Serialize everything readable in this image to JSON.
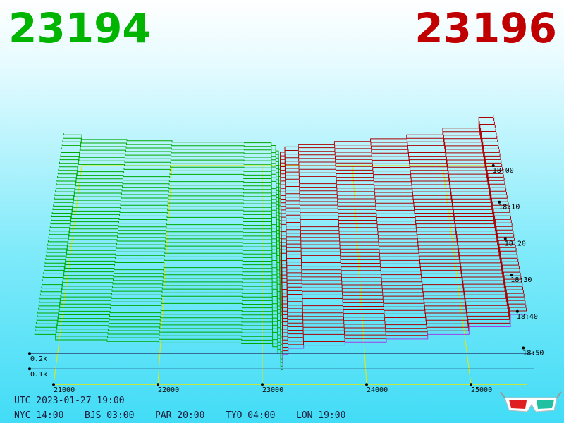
{
  "chart_data": {
    "type": "depth3d",
    "bid_price": "23194",
    "ask_price": "23196",
    "bid_color": "#00aa00",
    "ask_color": "#aa0000",
    "ask_latest_color": "#a040e0",
    "xticks": [
      21000,
      22000,
      23000,
      24000,
      25000
    ],
    "time_ticks": [
      {
        "value": 0,
        "label": "18:00"
      },
      {
        "value": 10,
        "label": "18:10"
      },
      {
        "value": 20,
        "label": "18:20"
      },
      {
        "value": 30,
        "label": "18:30"
      },
      {
        "value": 40,
        "label": "18:40"
      },
      {
        "value": 50,
        "label": "18:50"
      }
    ],
    "depth_ticks": [
      {
        "value": 200,
        "label": "0.2k"
      },
      {
        "value": 100,
        "label": "0.1k"
      }
    ],
    "slice_minutes": [
      0,
      1,
      2,
      3,
      4,
      5,
      6,
      7,
      8,
      9,
      10,
      11,
      12,
      13,
      14,
      15,
      16,
      17,
      18,
      19,
      20,
      21,
      22,
      23,
      24,
      25,
      26,
      27,
      28,
      29,
      30,
      31,
      32,
      33,
      34,
      35,
      36,
      37,
      38,
      39,
      40,
      41,
      42,
      43,
      44,
      45,
      46,
      47,
      48,
      49,
      50,
      51,
      52,
      53,
      54,
      55,
      56
    ],
    "bid_profile": {
      "prices": [
        23194,
        23180,
        23150,
        23100,
        22800,
        22000,
        21500,
        21000,
        20800
      ],
      "depths": [
        0,
        110,
        150,
        170,
        175,
        185,
        195,
        230,
        240
      ]
    },
    "ask_profile": {
      "prices": [
        23196,
        23200,
        23250,
        23400,
        23800,
        24200,
        24600,
        25000,
        25400,
        25560
      ],
      "depths": [
        0,
        100,
        140,
        160,
        180,
        200,
        230,
        280,
        360,
        380
      ]
    },
    "utc_line": "UTC 2023-01-27 19:00",
    "city_times": [
      "NYC 14:00",
      "BJS 03:00",
      "PAR 20:00",
      "TYO 04:00",
      "LON 19:00"
    ]
  }
}
